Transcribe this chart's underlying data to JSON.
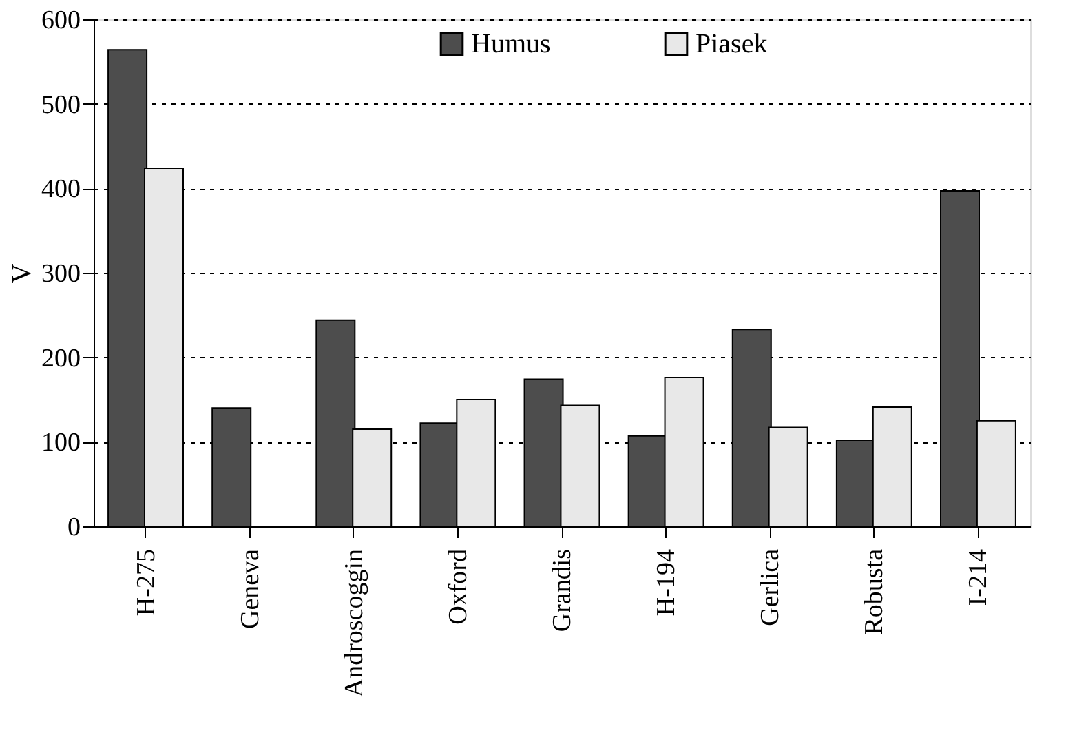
{
  "chart_data": {
    "type": "bar",
    "ylabel": "V",
    "categories": [
      "H-275",
      "Geneva",
      "Androscoggin",
      "Oxford",
      "Grandis",
      "H-194",
      "Gerlica",
      "Robusta",
      "I-214"
    ],
    "series": [
      {
        "name": "Humus",
        "color": "#4d4d4d",
        "values": [
          564,
          140,
          244,
          122,
          174,
          107,
          233,
          102,
          397
        ]
      },
      {
        "name": "Piasek",
        "color": "#e8e8e8",
        "values": [
          423,
          null,
          115,
          150,
          143,
          176,
          117,
          141,
          125
        ]
      }
    ],
    "ylim": [
      0,
      600
    ],
    "yticks": [
      0,
      100,
      200,
      300,
      400,
      500,
      600
    ],
    "grid": "y",
    "legend": "top"
  }
}
